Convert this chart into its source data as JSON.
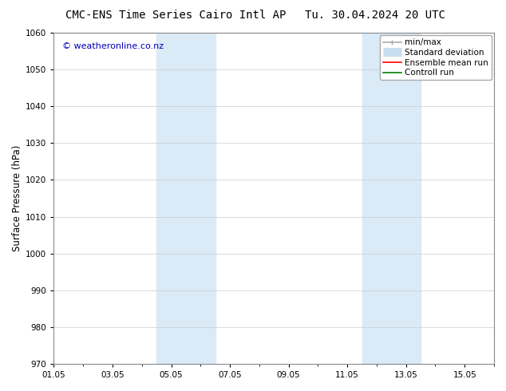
{
  "title_left": "CMC-ENS Time Series Cairo Intl AP",
  "title_right": "Tu. 30.04.2024 20 UTC",
  "ylabel": "Surface Pressure (hPa)",
  "ylim": [
    970,
    1060
  ],
  "yticks": [
    970,
    980,
    990,
    1000,
    1010,
    1020,
    1030,
    1040,
    1050,
    1060
  ],
  "xtick_labels": [
    "01.05",
    "03.05",
    "05.05",
    "07.05",
    "09.05",
    "11.05",
    "13.05",
    "15.05"
  ],
  "xtick_positions": [
    0,
    2,
    4,
    6,
    8,
    10,
    12,
    14
  ],
  "xlim": [
    0,
    15
  ],
  "shaded_bands": [
    {
      "x_start": 3.5,
      "x_end": 5.5,
      "color": "#daeaf7"
    },
    {
      "x_start": 10.5,
      "x_end": 12.5,
      "color": "#daeaf7"
    }
  ],
  "watermark_text": "© weatheronline.co.nz",
  "watermark_color": "#0000bb",
  "watermark_fontsize": 8,
  "legend_items": [
    {
      "label": "min/max",
      "color": "#aaaaaa",
      "lw": 1.2
    },
    {
      "label": "Standard deviation",
      "color": "#c8ddf0",
      "lw": 8
    },
    {
      "label": "Ensemble mean run",
      "color": "red",
      "lw": 1.2
    },
    {
      "label": "Controll run",
      "color": "green",
      "lw": 1.2
    }
  ],
  "bg_color": "#ffffff",
  "plot_bg_color": "#ffffff",
  "grid_color": "#cccccc",
  "title_fontsize": 10,
  "tick_labelsize": 7.5,
  "ylabel_fontsize": 8.5,
  "legend_fontsize": 7.5
}
